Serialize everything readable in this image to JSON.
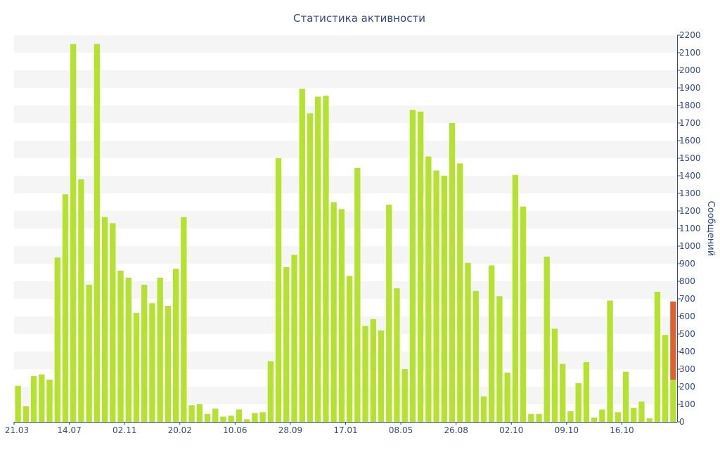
{
  "chart_data": {
    "type": "bar",
    "title": "Статистика активности",
    "xlabel": "",
    "ylabel": "Сообщений",
    "y_axis_side": "right",
    "ylim": [
      0,
      2200
    ],
    "yticks": [
      0,
      100,
      200,
      300,
      400,
      500,
      600,
      700,
      800,
      900,
      1000,
      1100,
      1200,
      1300,
      1400,
      1500,
      1600,
      1700,
      1800,
      1900,
      2000,
      2100,
      2200
    ],
    "grid": "alternating horizontal bands",
    "x_tick_labels": [
      {
        "label": "21.03",
        "index": 0
      },
      {
        "label": "14.07",
        "index": 7
      },
      {
        "label": "02.11",
        "index": 14
      },
      {
        "label": "20.02",
        "index": 21
      },
      {
        "label": "10.06",
        "index": 28
      },
      {
        "label": "28.09",
        "index": 35
      },
      {
        "label": "17.01",
        "index": 42
      },
      {
        "label": "08.05",
        "index": 49
      },
      {
        "label": "26.08",
        "index": 56
      },
      {
        "label": "02.10",
        "index": 63
      },
      {
        "label": "09.10",
        "index": 70
      },
      {
        "label": "16.10",
        "index": 77
      }
    ],
    "series": [
      {
        "color": "#b5e12f",
        "values": [
          205,
          90,
          260,
          270,
          240,
          935,
          1295,
          2150,
          1380,
          780,
          2150,
          1165,
          1130,
          860,
          820,
          620,
          780,
          675,
          820,
          660,
          870,
          1165,
          95,
          100,
          45,
          75,
          30,
          35,
          70,
          15,
          50,
          55,
          345,
          1500,
          880,
          950,
          1895,
          1755,
          1850,
          1855,
          1250,
          1210,
          830,
          1445,
          545,
          585,
          520,
          1235,
          760,
          300,
          1775,
          1765,
          1510,
          1430,
          1400,
          1700,
          1470,
          905,
          745,
          145,
          890,
          715,
          280,
          1405,
          1225,
          45,
          45,
          940,
          530,
          330,
          60,
          220,
          340,
          25,
          70,
          690,
          55,
          285,
          80,
          115,
          20,
          740,
          495,
          240
        ]
      },
      {
        "color": "#e0622b",
        "values": [
          0,
          0,
          0,
          0,
          0,
          0,
          0,
          0,
          0,
          0,
          0,
          0,
          0,
          0,
          0,
          0,
          0,
          0,
          0,
          0,
          0,
          0,
          0,
          0,
          0,
          0,
          0,
          0,
          0,
          0,
          0,
          0,
          0,
          0,
          0,
          0,
          0,
          0,
          0,
          0,
          0,
          0,
          0,
          0,
          0,
          0,
          0,
          0,
          0,
          0,
          0,
          0,
          0,
          0,
          0,
          0,
          0,
          0,
          0,
          0,
          0,
          0,
          0,
          0,
          0,
          0,
          0,
          0,
          0,
          0,
          0,
          0,
          0,
          0,
          0,
          0,
          0,
          0,
          0,
          0,
          0,
          0,
          0,
          445
        ]
      }
    ]
  }
}
